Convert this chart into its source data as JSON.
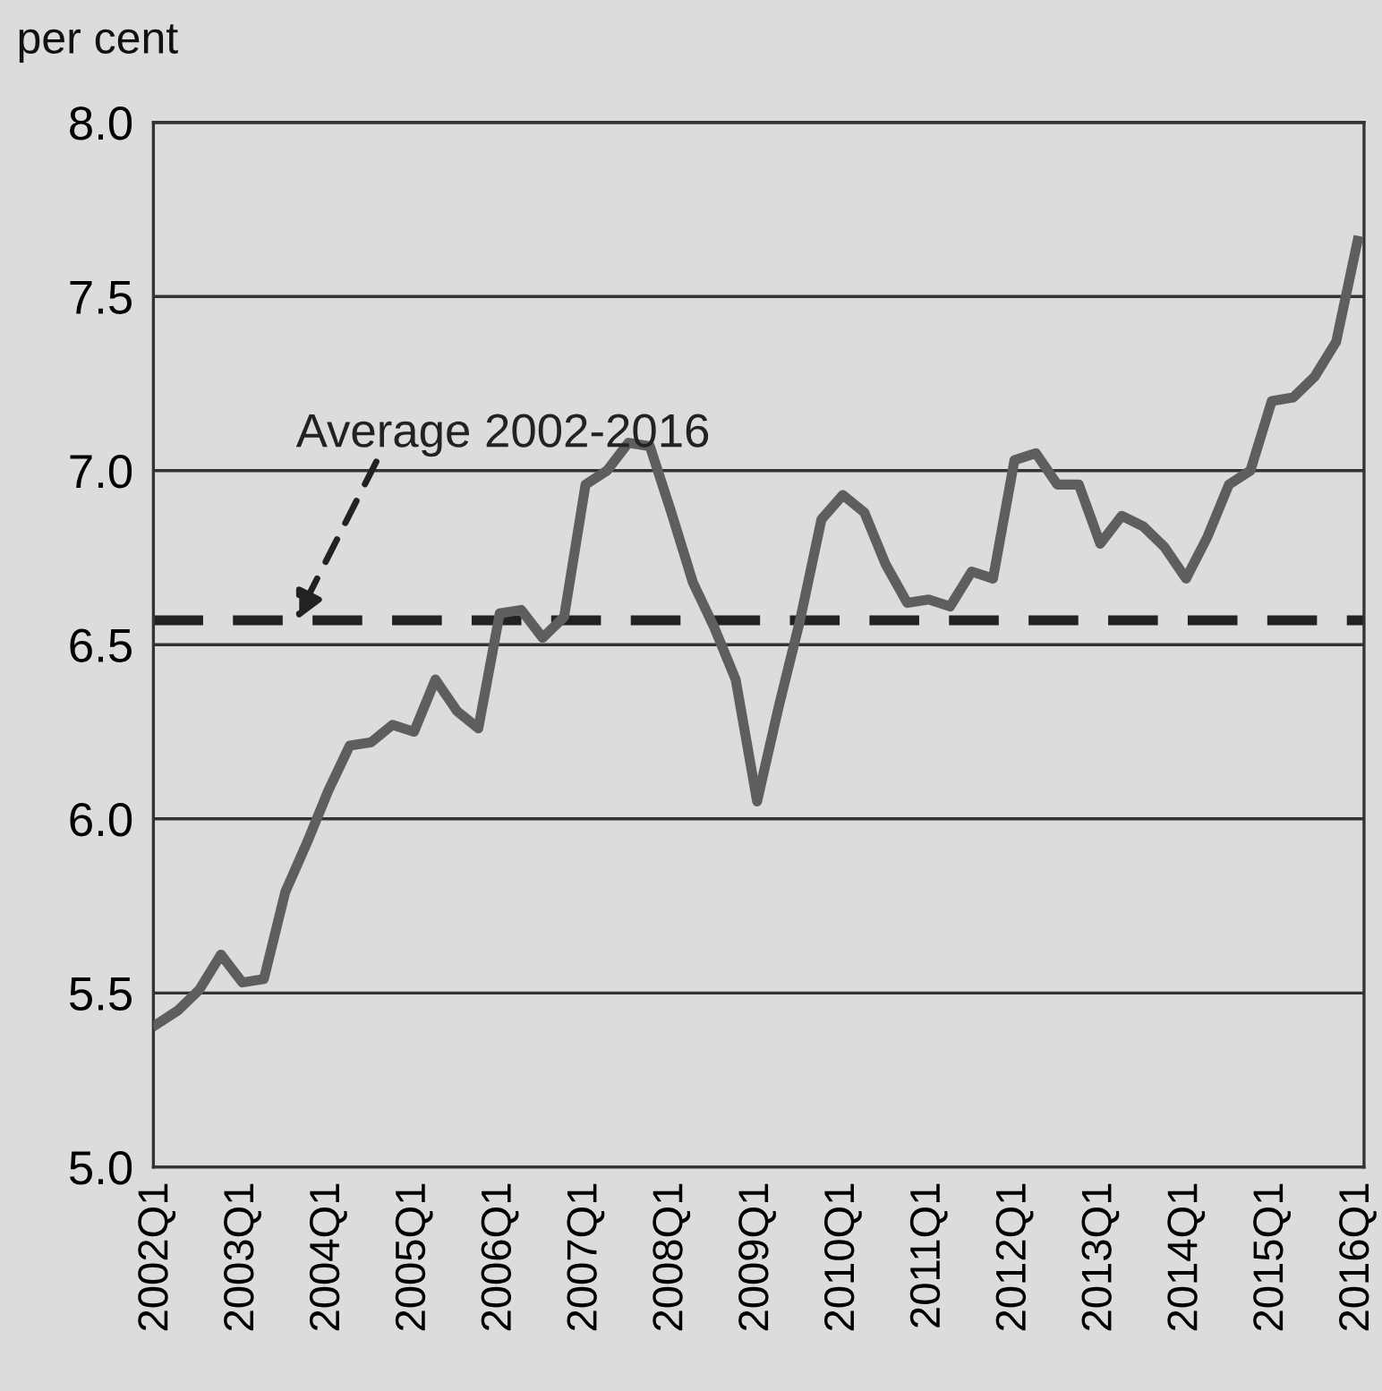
{
  "chart_data": {
    "type": "line",
    "ylabel": "per cent",
    "categories": [
      "2002Q1",
      null,
      null,
      null,
      "2003Q1",
      null,
      null,
      null,
      "2004Q1",
      null,
      null,
      null,
      "2005Q1",
      null,
      null,
      null,
      "2006Q1",
      null,
      null,
      null,
      "2007Q1",
      null,
      null,
      null,
      "2008Q1",
      null,
      null,
      null,
      "2009Q1",
      null,
      null,
      null,
      "2010Q1",
      null,
      null,
      null,
      "2011Q1",
      null,
      null,
      null,
      "2012Q1",
      null,
      null,
      null,
      "2013Q1",
      null,
      null,
      null,
      "2014Q1",
      null,
      null,
      null,
      "2015Q1",
      null,
      null,
      null,
      "2016Q1"
    ],
    "series": [
      {
        "color": "#5e5e5e",
        "values": [
          5.41,
          5.45,
          5.51,
          5.61,
          5.53,
          5.54,
          5.79,
          5.93,
          6.08,
          6.21,
          6.22,
          6.27,
          6.25,
          6.4,
          6.31,
          6.26,
          6.59,
          6.6,
          6.52,
          6.58,
          6.96,
          7.0,
          7.08,
          7.07,
          6.88,
          6.68,
          6.55,
          6.4,
          6.05,
          6.32,
          6.57,
          6.86,
          6.93,
          6.88,
          6.73,
          6.62,
          6.63,
          6.61,
          6.71,
          6.69,
          7.03,
          7.05,
          6.96,
          6.96,
          6.79,
          6.87,
          6.84,
          6.78,
          6.69,
          6.81,
          6.96,
          7.0,
          7.2,
          7.21,
          7.27,
          7.37,
          7.66
        ]
      }
    ],
    "ylim": [
      5.0,
      8.0
    ],
    "yticks": [
      {
        "value": 5.0,
        "label": "5.0"
      },
      {
        "value": 5.5,
        "label": "5.5"
      },
      {
        "value": 6.0,
        "label": "6.0"
      },
      {
        "value": 6.5,
        "label": "6.5"
      },
      {
        "value": 7.0,
        "label": "7.0"
      },
      {
        "value": 7.5,
        "label": "7.5"
      },
      {
        "value": 8.0,
        "label": "8.0"
      }
    ],
    "grid": "y",
    "marker": "none",
    "line_style": "solid",
    "ref_lines": [
      {
        "axis": "y",
        "value": 6.57,
        "label": "Average 2002-2016",
        "color": "#222222",
        "line_style": "dashed"
      }
    ]
  }
}
